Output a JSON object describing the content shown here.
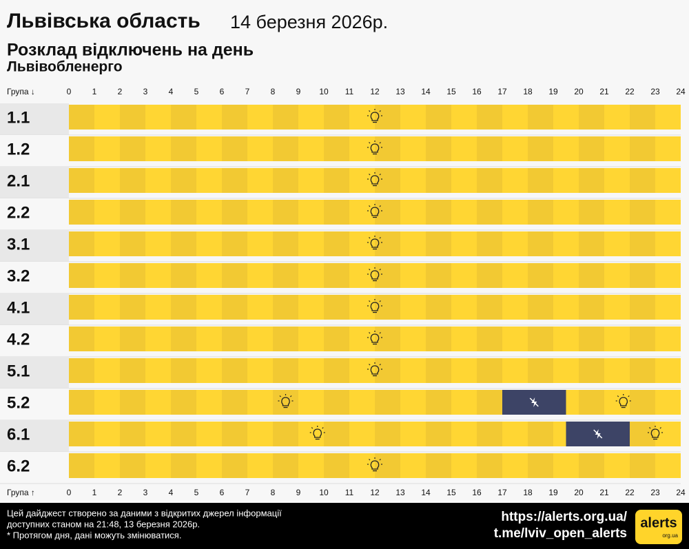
{
  "header": {
    "region": "Львівська область",
    "date": "14 березня 2026р.",
    "title": "Розклад відключень на день",
    "provider": "Львівобленерго"
  },
  "axis_label_top": "Група ↓",
  "axis_label_bottom": "Група ↑",
  "hours": [
    0,
    1,
    2,
    3,
    4,
    5,
    6,
    7,
    8,
    9,
    10,
    11,
    12,
    13,
    14,
    15,
    16,
    17,
    18,
    19,
    20,
    21,
    22,
    23,
    24
  ],
  "groups": [
    {
      "name": "1.1",
      "outages": []
    },
    {
      "name": "1.2",
      "outages": []
    },
    {
      "name": "2.1",
      "outages": []
    },
    {
      "name": "2.2",
      "outages": []
    },
    {
      "name": "3.1",
      "outages": []
    },
    {
      "name": "3.2",
      "outages": []
    },
    {
      "name": "4.1",
      "outages": []
    },
    {
      "name": "4.2",
      "outages": []
    },
    {
      "name": "5.1",
      "outages": []
    },
    {
      "name": "5.2",
      "outages": [
        [
          17,
          19.5
        ]
      ]
    },
    {
      "name": "6.1",
      "outages": [
        [
          19.5,
          22
        ]
      ]
    },
    {
      "name": "6.2",
      "outages": []
    }
  ],
  "footer": {
    "note_lines": [
      "Цей дайджест створено за даними з відкритих джерел інформації",
      "доступних станом на 21:48, 13 березня 2026р.",
      "* Протягом дня, дані можуть змінюватися."
    ],
    "links": [
      "https://alerts.org.ua/",
      "t.me/lviv_open_alerts"
    ],
    "logo": "alerts",
    "logo_sub": "org.ua"
  }
}
